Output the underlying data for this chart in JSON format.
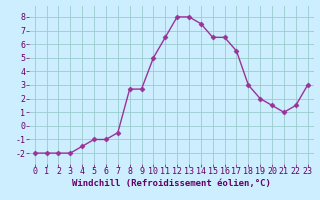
{
  "x": [
    0,
    1,
    2,
    3,
    4,
    5,
    6,
    7,
    8,
    9,
    10,
    11,
    12,
    13,
    14,
    15,
    16,
    17,
    18,
    19,
    20,
    21,
    22,
    23
  ],
  "y": [
    -2,
    -2,
    -2,
    -2,
    -1.5,
    -1,
    -1,
    -0.5,
    2.7,
    2.7,
    5,
    6.5,
    8,
    8,
    7.5,
    6.5,
    6.5,
    5.5,
    3,
    2,
    1.5,
    1,
    1.5,
    3
  ],
  "xlim": [
    -0.5,
    23.5
  ],
  "ylim": [
    -2.8,
    8.8
  ],
  "xticks": [
    0,
    1,
    2,
    3,
    4,
    5,
    6,
    7,
    8,
    9,
    10,
    11,
    12,
    13,
    14,
    15,
    16,
    17,
    18,
    19,
    20,
    21,
    22,
    23
  ],
  "yticks": [
    -2,
    -1,
    0,
    1,
    2,
    3,
    4,
    5,
    6,
    7,
    8
  ],
  "xlabel": "Windchill (Refroidissement éolien,°C)",
  "line_color": "#993399",
  "marker": "D",
  "marker_size": 2.5,
  "bg_color": "#cceeff",
  "grid_color": "#99cccc",
  "xlabel_color": "#660066",
  "tick_color": "#660066",
  "linewidth": 1.0,
  "xlabel_fontsize": 6.5,
  "tick_fontsize": 6.0
}
